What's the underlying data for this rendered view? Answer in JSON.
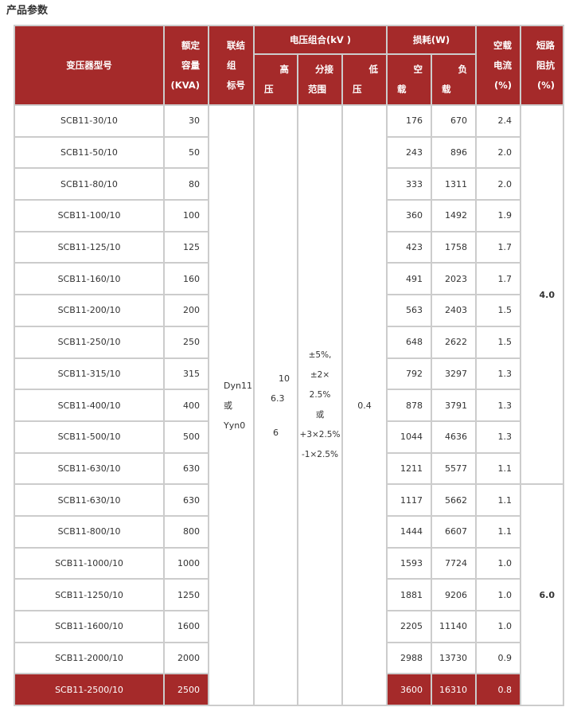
{
  "title": "产品参数",
  "header": {
    "model": "变压器型号",
    "capacity": [
      "额定",
      "容量",
      "(KVA)"
    ],
    "connection": [
      "联结",
      "组",
      "标号"
    ],
    "voltage": "电压组合(kV )",
    "hv": [
      "高",
      "压"
    ],
    "tap": [
      "分接",
      "范围"
    ],
    "lv": [
      "低",
      "压"
    ],
    "loss": "损耗(W)",
    "noload": [
      "空",
      "载"
    ],
    "load": [
      "负",
      "载"
    ],
    "current": [
      "空载",
      "电流",
      "(%)"
    ],
    "impedance": [
      "短路",
      "阻抗",
      "(%)"
    ]
  },
  "merged": {
    "connection": [
      "Dyn11",
      "或",
      "Yyn0"
    ],
    "hv": [
      "10",
      "6.3",
      "6"
    ],
    "tap": [
      "±5%,",
      "±2×",
      "2.5%",
      "或",
      "+3×2.5%",
      "-1×2.5%"
    ],
    "lv": "0.4",
    "impedance_a": "4.0",
    "impedance_b": "6.0"
  },
  "highlight_color": "#a52a2a",
  "rows": [
    {
      "model": "SCB11-30/10",
      "capacity": "30",
      "noload": "176",
      "load": "670",
      "current": "2.4"
    },
    {
      "model": "SCB11-50/10",
      "capacity": "50",
      "noload": "243",
      "load": "896",
      "current": "2.0"
    },
    {
      "model": "SCB11-80/10",
      "capacity": "80",
      "noload": "333",
      "load": "1311",
      "current": "2.0"
    },
    {
      "model": "SCB11-100/10",
      "capacity": "100",
      "noload": "360",
      "load": "1492",
      "current": "1.9"
    },
    {
      "model": "SCB11-125/10",
      "capacity": "125",
      "noload": "423",
      "load": "1758",
      "current": "1.7"
    },
    {
      "model": "SCB11-160/10",
      "capacity": "160",
      "noload": "491",
      "load": "2023",
      "current": "1.7"
    },
    {
      "model": "SCB11-200/10",
      "capacity": "200",
      "noload": "563",
      "load": "2403",
      "current": "1.5"
    },
    {
      "model": "SCB11-250/10",
      "capacity": "250",
      "noload": "648",
      "load": "2622",
      "current": "1.5"
    },
    {
      "model": "SCB11-315/10",
      "capacity": "315",
      "noload": "792",
      "load": "3297",
      "current": "1.3"
    },
    {
      "model": "SCB11-400/10",
      "capacity": "400",
      "noload": "878",
      "load": "3791",
      "current": "1.3"
    },
    {
      "model": "SCB11-500/10",
      "capacity": "500",
      "noload": "1044",
      "load": "4636",
      "current": "1.3"
    },
    {
      "model": "SCB11-630/10",
      "capacity": "630",
      "noload": "1211",
      "load": "5577",
      "current": "1.1"
    },
    {
      "model": "SCB11-630/10",
      "capacity": "630",
      "noload": "1117",
      "load": "5662",
      "current": "1.1"
    },
    {
      "model": "SCB11-800/10",
      "capacity": "800",
      "noload": "1444",
      "load": "6607",
      "current": "1.1"
    },
    {
      "model": "SCB11-1000/10",
      "capacity": "1000",
      "noload": "1593",
      "load": "7724",
      "current": "1.0"
    },
    {
      "model": "SCB11-1250/10",
      "capacity": "1250",
      "noload": "1881",
      "load": "9206",
      "current": "1.0"
    },
    {
      "model": "SCB11-1600/10",
      "capacity": "1600",
      "noload": "2205",
      "load": "11140",
      "current": "1.0"
    },
    {
      "model": "SCB11-2000/10",
      "capacity": "2000",
      "noload": "2988",
      "load": "13730",
      "current": "0.9"
    },
    {
      "model": "SCB11-2500/10",
      "capacity": "2500",
      "noload": "3600",
      "load": "16310",
      "current": "0.8",
      "highlight": true
    }
  ]
}
